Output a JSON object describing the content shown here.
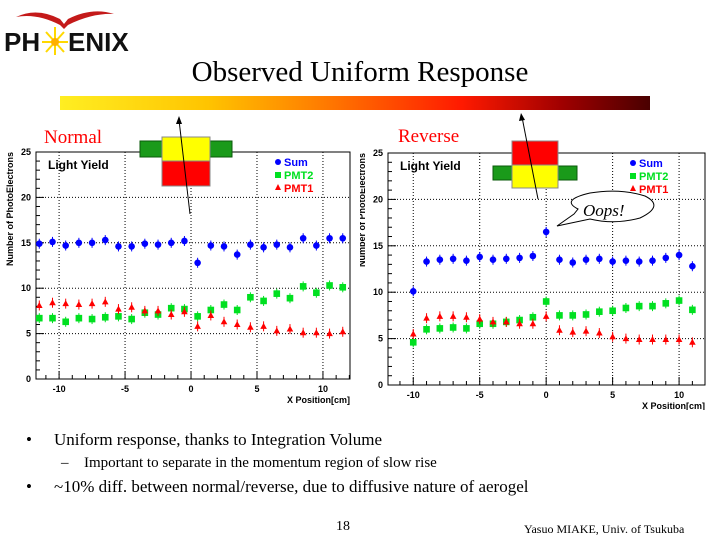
{
  "logo": {
    "text": "PHOENIX"
  },
  "slide": {
    "title": "Observed Uniform Response",
    "bullets": [
      {
        "text": "Uniform response, thanks to Integration Volume",
        "sub": [
          "Important to separate in the momentum region of slow rise"
        ]
      },
      {
        "text": "~10% diff. between normal/reverse, due to diffusive nature of aerogel",
        "sub": []
      }
    ],
    "bullet_symbol": "•",
    "sub_bullet_symbol": "–",
    "page_number": "18",
    "footer": "Yasuo MIAKE, Univ. of Tsukuba",
    "callout": "Oops!"
  },
  "colors": {
    "sum": "#0000ff",
    "pmt2": "#00e020",
    "pmt1": "#ff0000",
    "label": "#ff0000"
  },
  "chart_data": [
    {
      "type": "scatter",
      "panel_label": "Normal",
      "title": "Light Yield",
      "xlabel": "X Position[cm]",
      "ylabel": "Number of PhotoElectrons",
      "xlim": [
        -11.75,
        12.05
      ],
      "ylim": [
        0,
        25
      ],
      "xticks": [
        -10,
        -5,
        0,
        5,
        10
      ],
      "yticks": [
        0,
        5,
        10,
        15,
        20,
        25
      ],
      "grid": true,
      "legend_position": "top-right",
      "x": [
        -11.5,
        -10.5,
        -9.5,
        -8.5,
        -7.5,
        -6.5,
        -5.5,
        -4.5,
        -3.5,
        -2.5,
        -1.5,
        -0.5,
        0.5,
        1.5,
        2.5,
        3.5,
        4.5,
        5.5,
        6.5,
        7.5,
        8.5,
        9.5,
        10.5,
        11.5
      ],
      "series": [
        {
          "name": "Sum",
          "marker": "circle",
          "values": [
            14.9,
            15.1,
            14.7,
            15.0,
            15.0,
            15.3,
            14.6,
            14.6,
            14.9,
            14.8,
            15.0,
            15.2,
            12.8,
            14.7,
            14.6,
            13.7,
            14.8,
            14.5,
            14.8,
            14.5,
            15.5,
            14.7,
            15.5,
            15.5
          ]
        },
        {
          "name": "PMT2",
          "marker": "square",
          "values": [
            6.7,
            6.7,
            6.3,
            6.7,
            6.6,
            6.8,
            6.9,
            6.6,
            7.3,
            7.1,
            7.8,
            7.7,
            6.9,
            7.6,
            8.2,
            7.6,
            9.0,
            8.6,
            9.4,
            8.9,
            10.2,
            9.5,
            10.3,
            10.1
          ]
        },
        {
          "name": "PMT1",
          "marker": "triangle",
          "values": [
            8.1,
            8.4,
            8.3,
            8.2,
            8.3,
            8.5,
            7.7,
            7.9,
            7.5,
            7.5,
            7.1,
            7.4,
            5.8,
            7.0,
            6.3,
            6.0,
            5.7,
            5.8,
            5.3,
            5.5,
            5.1,
            5.1,
            5.0,
            5.2
          ]
        }
      ]
    },
    {
      "type": "scatter",
      "panel_label": "Reverse",
      "title": "Light Yield",
      "xlabel": "X Position[cm]",
      "ylabel": "Number of PhotoElectrons",
      "xlim": [
        -11.9,
        11.95
      ],
      "ylim": [
        0,
        25
      ],
      "xticks": [
        -10,
        -5,
        0,
        5,
        10
      ],
      "yticks": [
        0,
        5,
        10,
        15,
        20,
        25
      ],
      "grid": true,
      "legend_position": "top-right",
      "x": [
        -10,
        -9,
        -8,
        -7,
        -6,
        -5,
        -4,
        -3,
        -2,
        -1,
        0,
        1,
        2,
        3,
        4,
        5,
        6,
        7,
        8,
        9,
        10,
        11
      ],
      "series": [
        {
          "name": "Sum",
          "marker": "circle",
          "values": [
            10.1,
            13.3,
            13.5,
            13.6,
            13.4,
            13.8,
            13.5,
            13.6,
            13.7,
            13.9,
            16.5,
            13.5,
            13.2,
            13.5,
            13.6,
            13.3,
            13.4,
            13.3,
            13.4,
            13.7,
            14.0,
            12.8
          ]
        },
        {
          "name": "PMT2",
          "marker": "square",
          "values": [
            4.6,
            6.0,
            6.1,
            6.2,
            6.1,
            6.6,
            6.6,
            6.8,
            7.0,
            7.3,
            9.0,
            7.5,
            7.5,
            7.6,
            7.9,
            8.0,
            8.3,
            8.5,
            8.5,
            8.8,
            9.1,
            8.1
          ]
        },
        {
          "name": "PMT1",
          "marker": "triangle",
          "values": [
            5.5,
            7.2,
            7.4,
            7.4,
            7.3,
            7.1,
            6.8,
            6.8,
            6.6,
            6.6,
            7.4,
            5.9,
            5.7,
            5.8,
            5.6,
            5.2,
            5.0,
            4.9,
            4.9,
            4.9,
            4.9,
            4.6
          ]
        }
      ]
    }
  ]
}
